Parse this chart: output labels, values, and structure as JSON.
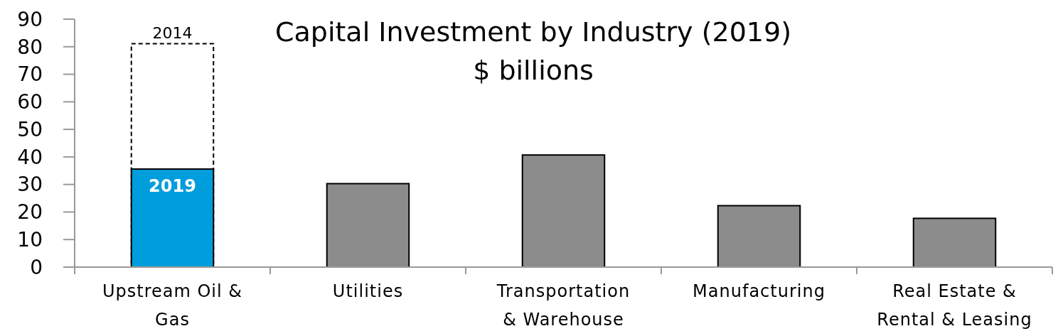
{
  "chart_data": {
    "type": "bar",
    "title": "Capital Investment by Industry (2019)",
    "subtitle": "$ billions",
    "categories": [
      "Upstream Oil & Gas",
      "Utilities",
      "Transportation & Warehouse",
      "Manufacturing",
      "Real Estate & Rental & Leasing"
    ],
    "series": [
      {
        "name": "2014",
        "color": "#000000",
        "line_style": "dashed",
        "values": [
          81.1,
          null,
          null,
          null,
          null
        ]
      },
      {
        "name": "2019",
        "colors": [
          "#009ddc",
          "#8c8c8c",
          "#8c8c8c",
          "#8c8c8c",
          "#8c8c8c"
        ],
        "values": [
          35.6,
          30.3,
          40.7,
          22.3,
          17.7
        ]
      }
    ],
    "ylim": [
      0,
      90
    ],
    "yticks": [
      0,
      10,
      20,
      30,
      40,
      50,
      60,
      70,
      80,
      90
    ],
    "grid": false
  }
}
